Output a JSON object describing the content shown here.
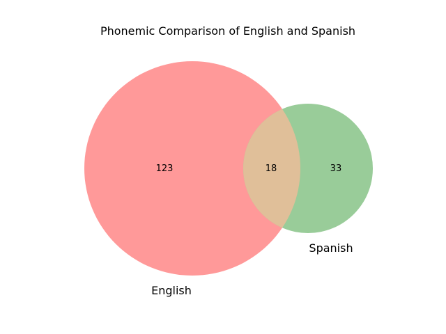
{
  "chart_data": {
    "type": "venn",
    "title": "Phonemic Comparison of English and Spanish",
    "sets": [
      {
        "name": "English",
        "only_count": 123,
        "color": "#ff9999"
      },
      {
        "name": "Spanish",
        "only_count": 33,
        "color": "#99cc99"
      }
    ],
    "intersection": {
      "count": 18,
      "color": "#e0bf99"
    }
  }
}
